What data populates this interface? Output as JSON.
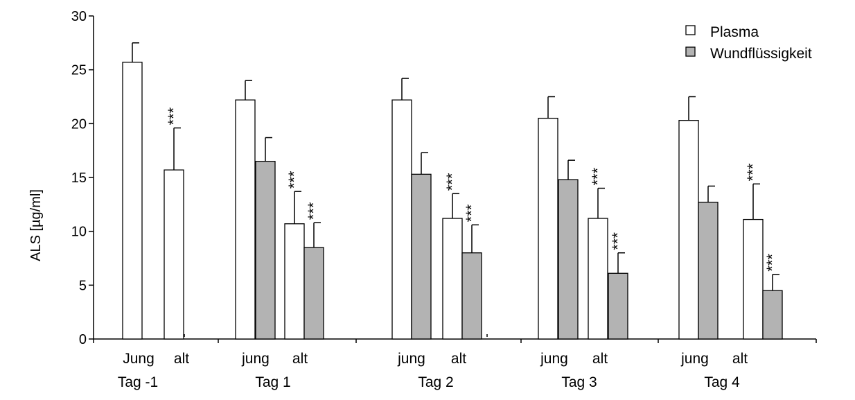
{
  "chart_data": {
    "type": "bar",
    "ylabel": "ALS   [µg/ml]",
    "ylim": [
      0,
      30
    ],
    "yticks": [
      0,
      5,
      10,
      15,
      20,
      25,
      30
    ],
    "grid": false,
    "legend_position": "top-right",
    "legend": [
      {
        "name": "Plasma",
        "color": "#ffffff"
      },
      {
        "name": "Wundflüssigkeit",
        "color": "#b3b3b3"
      }
    ],
    "groups": [
      {
        "name": "Tag -1",
        "subgroups": [
          {
            "label": "Jung",
            "bars": [
              {
                "series": "Plasma",
                "value": 25.7,
                "error": 1.8,
                "sig": ""
              }
            ]
          },
          {
            "label": "alt",
            "bars": [
              {
                "series": "Plasma",
                "value": 15.7,
                "error": 3.9,
                "sig": "***"
              }
            ]
          }
        ]
      },
      {
        "name": "Tag 1",
        "subgroups": [
          {
            "label": "jung",
            "bars": [
              {
                "series": "Plasma",
                "value": 22.2,
                "error": 1.8,
                "sig": ""
              },
              {
                "series": "Wundflüssigkeit",
                "value": 16.5,
                "error": 2.2,
                "sig": ""
              }
            ]
          },
          {
            "label": "alt",
            "bars": [
              {
                "series": "Plasma",
                "value": 10.7,
                "error": 3.0,
                "sig": "***"
              },
              {
                "series": "Wundflüssigkeit",
                "value": 8.5,
                "error": 2.3,
                "sig": "***"
              }
            ]
          }
        ]
      },
      {
        "name": "Tag 2",
        "subgroups": [
          {
            "label": "jung",
            "bars": [
              {
                "series": "Plasma",
                "value": 22.2,
                "error": 2.0,
                "sig": ""
              },
              {
                "series": "Wundflüssigkeit",
                "value": 15.3,
                "error": 2.0,
                "sig": ""
              }
            ]
          },
          {
            "label": "alt",
            "bars": [
              {
                "series": "Plasma",
                "value": 11.2,
                "error": 2.3,
                "sig": "***"
              },
              {
                "series": "Wundflüssigkeit",
                "value": 8.0,
                "error": 2.6,
                "sig": "***"
              }
            ]
          }
        ]
      },
      {
        "name": "Tag 3",
        "subgroups": [
          {
            "label": "jung",
            "bars": [
              {
                "series": "Plasma",
                "value": 20.5,
                "error": 2.0,
                "sig": ""
              },
              {
                "series": "Wundflüssigkeit",
                "value": 14.8,
                "error": 1.8,
                "sig": ""
              }
            ]
          },
          {
            "label": "alt",
            "bars": [
              {
                "series": "Plasma",
                "value": 11.2,
                "error": 2.8,
                "sig": "***"
              },
              {
                "series": "Wundflüssigkeit",
                "value": 6.1,
                "error": 1.9,
                "sig": "***"
              }
            ]
          }
        ]
      },
      {
        "name": "Tag 4",
        "subgroups": [
          {
            "label": "jung",
            "bars": [
              {
                "series": "Plasma",
                "value": 20.3,
                "error": 2.2,
                "sig": ""
              },
              {
                "series": "Wundflüssigkeit",
                "value": 12.7,
                "error": 1.5,
                "sig": ""
              }
            ]
          },
          {
            "label": "alt",
            "bars": [
              {
                "series": "Plasma",
                "value": 11.1,
                "error": 3.3,
                "sig": "***"
              },
              {
                "series": "Wundflüssigkeit",
                "value": 4.5,
                "error": 1.5,
                "sig": "***"
              }
            ]
          }
        ]
      }
    ]
  }
}
